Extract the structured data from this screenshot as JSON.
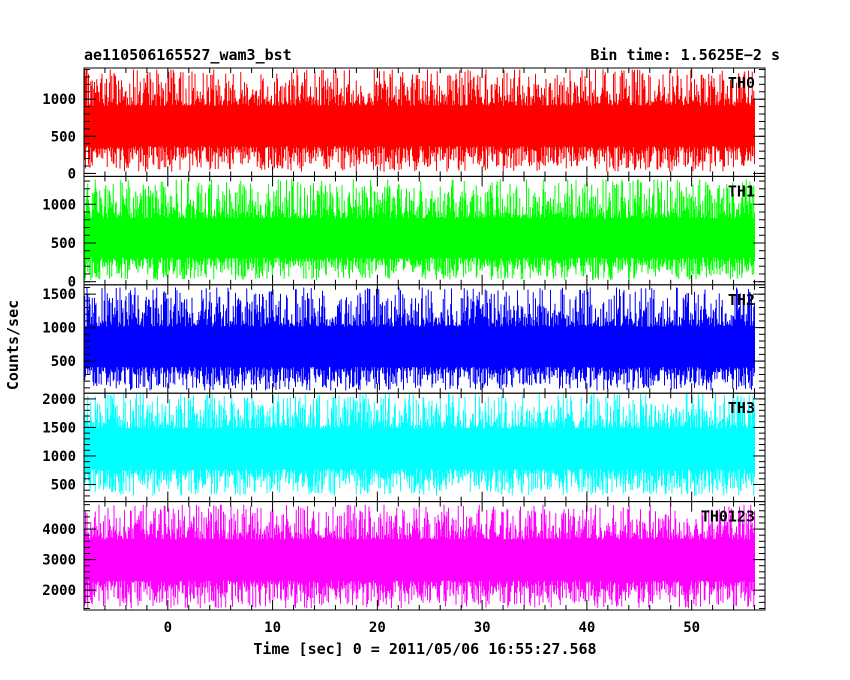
{
  "header": {
    "left_title": "ae110506165527_wam3_bst",
    "right_title": "Bin time: 1.5625E−2 s"
  },
  "axes": {
    "ylabel": "Counts/sec",
    "xlabel": "Time [sec] 0 = 2011/05/06 16:55:27.568"
  },
  "chart_data": {
    "type": "line",
    "xlim": [
      -8,
      57
    ],
    "x_ticks": [
      0,
      10,
      20,
      30,
      40,
      50
    ],
    "x_tick_labels": [
      "0",
      "10",
      "20",
      "30",
      "40",
      "50"
    ],
    "x_start": -8.0,
    "x_end": 56.0,
    "bin_time_s": 0.015625,
    "grid": false,
    "panels": [
      {
        "name": "TH0",
        "color": "#ff0000",
        "ylim": [
          -40,
          1420
        ],
        "y_ticks": [
          0,
          500,
          1000
        ],
        "y_tick_labels": [
          "0",
          "500",
          "1000"
        ],
        "mean": 650,
        "min": 20,
        "max": 1400
      },
      {
        "name": "TH1",
        "color": "#00ff00",
        "ylim": [
          -40,
          1360
        ],
        "y_ticks": [
          0,
          500,
          1000
        ],
        "y_tick_labels": [
          "0",
          "500",
          "1000"
        ],
        "mean": 550,
        "min": 20,
        "max": 1320
      },
      {
        "name": "TH2",
        "color": "#0000ff",
        "ylim": [
          20,
          1640
        ],
        "y_ticks": [
          500,
          1000,
          1500
        ],
        "y_tick_labels": [
          "500",
          "1000",
          "1500"
        ],
        "mean": 700,
        "min": 60,
        "max": 1600
      },
      {
        "name": "TH3",
        "color": "#00ffff",
        "ylim": [
          200,
          2100
        ],
        "y_ticks": [
          500,
          1000,
          1500,
          2000
        ],
        "y_tick_labels": [
          "500",
          "1000",
          "1500",
          "2000"
        ],
        "mean": 1150,
        "min": 300,
        "max": 2100
      },
      {
        "name": "TH0123",
        "color": "#ff00ff",
        "ylim": [
          1350,
          4900
        ],
        "y_ticks": [
          2000,
          3000,
          4000
        ],
        "y_tick_labels": [
          "2000",
          "3000",
          "4000"
        ],
        "mean": 3050,
        "min": 1400,
        "max": 4800
      }
    ]
  }
}
